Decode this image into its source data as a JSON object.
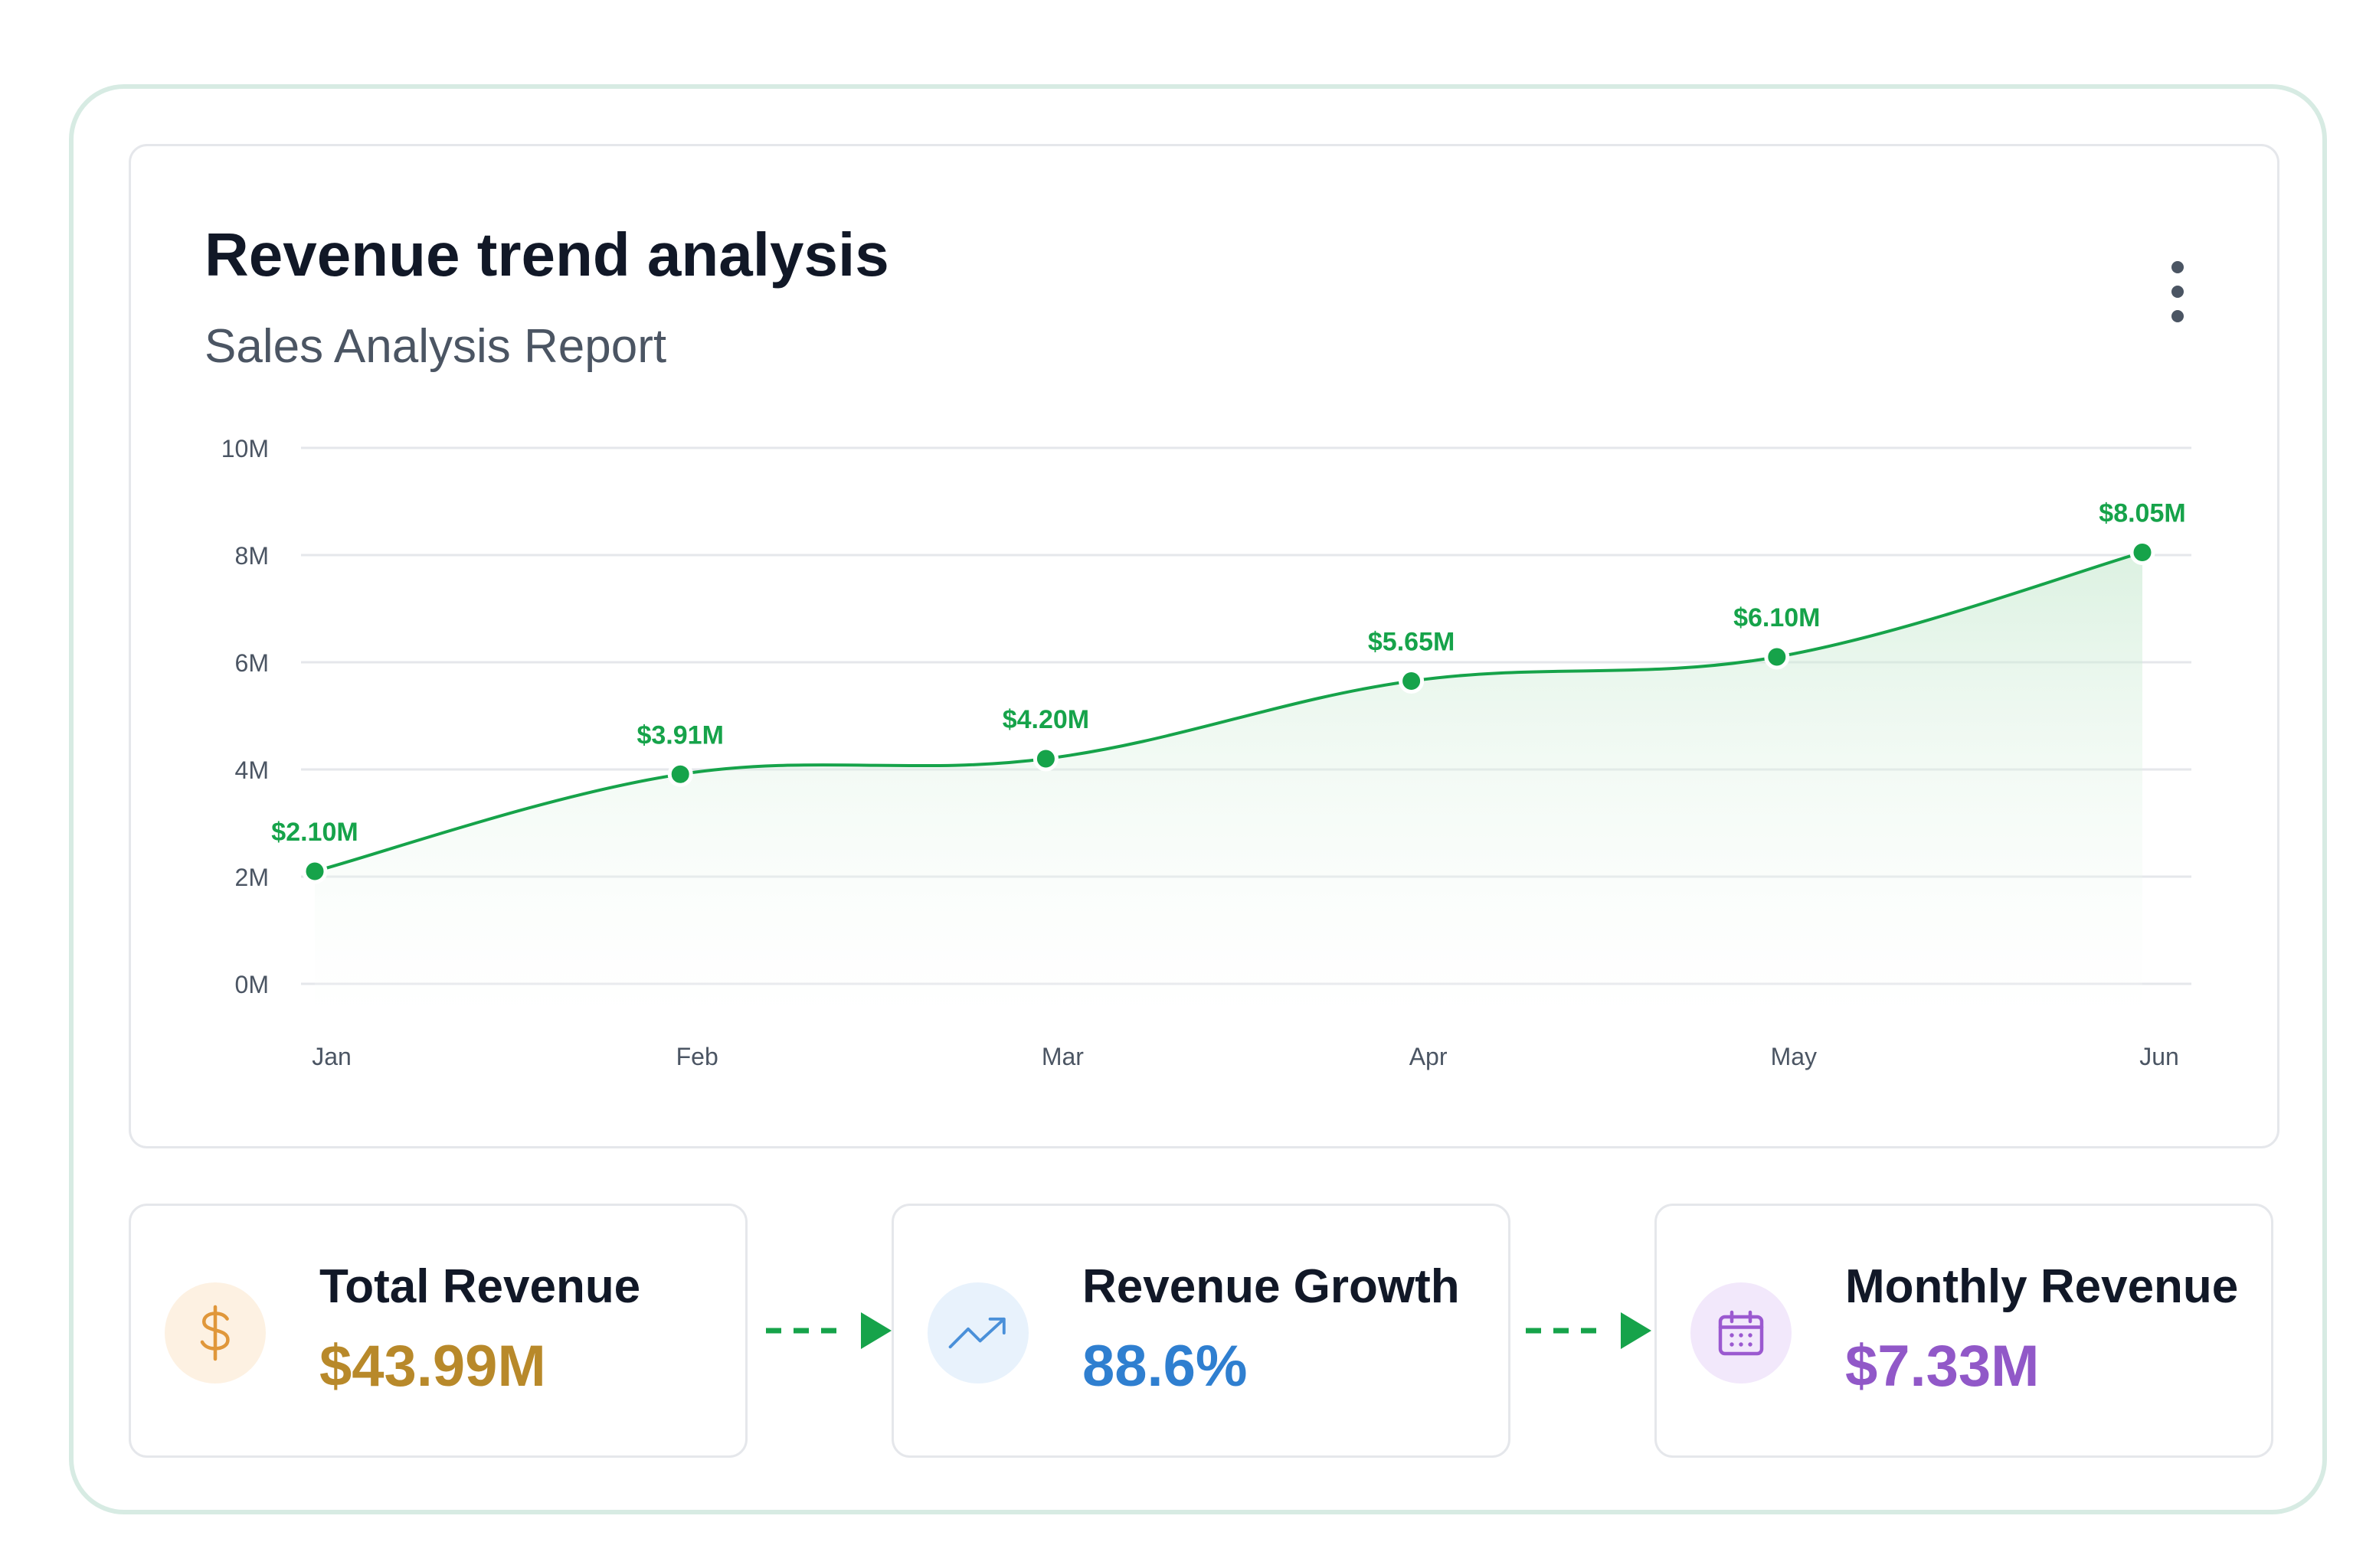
{
  "card": {
    "title": "Revenue trend analysis",
    "subtitle": "Sales Analysis Report"
  },
  "colors": {
    "line": "#16a34a",
    "point": "#16a34a",
    "area_top": "#bfe6c9",
    "grid": "#e5e7eb",
    "tick_text": "#4b5563",
    "label_text": "#16a34a"
  },
  "chart_data": {
    "type": "area",
    "title": "",
    "xlabel": "",
    "ylabel": "",
    "categories": [
      "Jan",
      "Feb",
      "Mar",
      "Apr",
      "May",
      "Jun"
    ],
    "values": [
      2.1,
      3.91,
      4.2,
      5.65,
      6.1,
      8.05
    ],
    "data_labels": [
      "$2.10M",
      "$3.91M",
      "$4.20M",
      "$5.65M",
      "$6.10M",
      "$8.05M"
    ],
    "y_ticks": [
      "0M",
      "2M",
      "4M",
      "6M",
      "8M",
      "10M"
    ],
    "y_tick_values": [
      0,
      2,
      4,
      6,
      8,
      10
    ],
    "ylim": [
      0,
      10
    ],
    "grid": true,
    "legend": "none"
  },
  "stats": [
    {
      "label": "Total Revenue",
      "value": "$43.99M",
      "icon": "dollar-icon",
      "color": "#b8892a",
      "icon_bg": "#fdf1e2",
      "icon_color": "#e0973a"
    },
    {
      "label": "Revenue Growth",
      "value": "88.6%",
      "icon": "trending-up-icon",
      "color": "#2f7fd0",
      "icon_bg": "#e8f2fc",
      "icon_color": "#4a90d9"
    },
    {
      "label": "Monthly Revenue",
      "value": "$7.33M",
      "icon": "calendar-icon",
      "color": "#9158c8",
      "icon_bg": "#f2e8fb",
      "icon_color": "#9b59d0"
    }
  ],
  "connector_color": "#16a34a"
}
